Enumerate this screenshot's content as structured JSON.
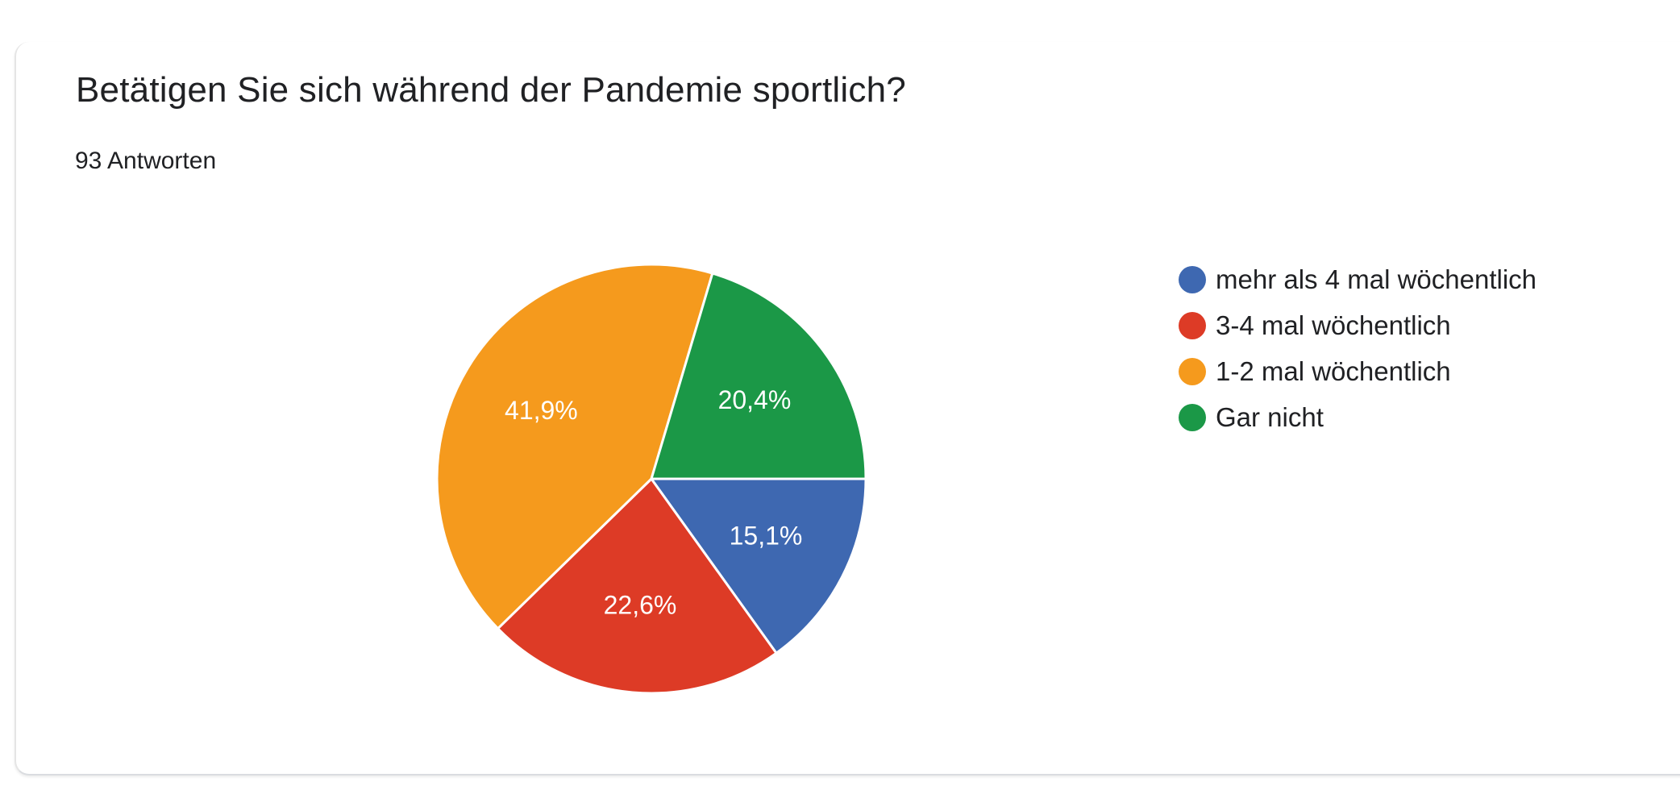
{
  "question": {
    "title": "Betätigen Sie sich während der Pandemie sportlich?",
    "response_count": "93 Antworten"
  },
  "chart_data": {
    "type": "pie",
    "title": "Betätigen Sie sich während der Pandemie sportlich?",
    "slices": [
      {
        "label": "mehr als 4 mal wöchentlich",
        "value": 15.1,
        "display": "15,1%",
        "color": "#3e68b1"
      },
      {
        "label": "3-4 mal wöchentlich",
        "value": 22.6,
        "display": "22,6%",
        "color": "#dd3b26"
      },
      {
        "label": "1-2 mal wöchentlich",
        "value": 41.9,
        "display": "41,9%",
        "color": "#f59a1d"
      },
      {
        "label": "Gar nicht",
        "value": 20.4,
        "display": "20,4%",
        "color": "#1b9847"
      }
    ],
    "legend_position": "right"
  }
}
